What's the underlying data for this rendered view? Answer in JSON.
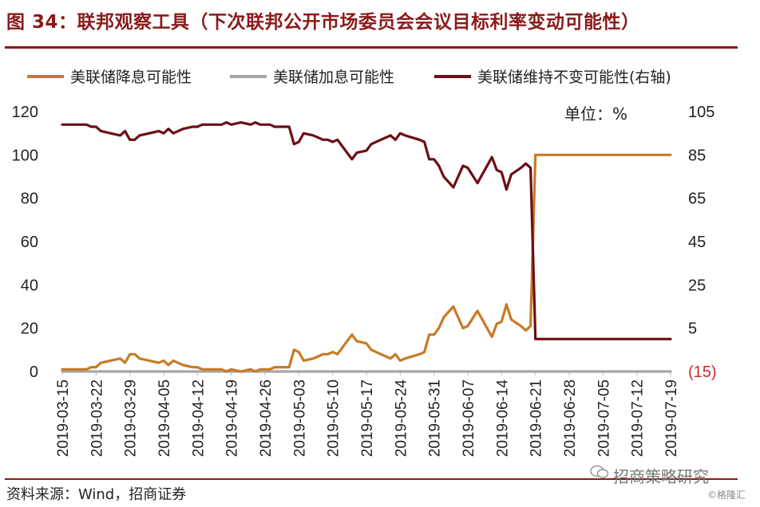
{
  "figure_title": "图 34：联邦观察工具（下次联邦公开市场委员会会议目标利率变动可能性）",
  "source_note": "资料来源：Wind，招商证券",
  "watermark": {
    "main": "招商策略研究",
    "small": "©格隆汇"
  },
  "colors": {
    "cut": "#c87a26",
    "hike": "#a6a6a6",
    "hold": "#6b0f14",
    "accent": "#8b1a1a",
    "negative_tick": "#d9242a"
  },
  "chart_data": {
    "type": "line",
    "annotation": "单位：%",
    "legend": {
      "placement": "top",
      "entries": [
        "美联储降息可能性",
        "美联储加息可能性",
        "美联储维持不变可能性(右轴)"
      ]
    },
    "ylim_left": [
      0,
      120
    ],
    "yticks_left": [
      0,
      20,
      40,
      60,
      80,
      100,
      120
    ],
    "ylim_right": [
      -15,
      105
    ],
    "yticks_right": [
      "(15)",
      "5",
      "25",
      "45",
      "65",
      "85",
      "105"
    ],
    "x_start": "2019-03-15",
    "x_end": "2019-07-19",
    "x_ticks": [
      "2019-03-15",
      "2019-03-22",
      "2019-03-29",
      "2019-04-05",
      "2019-04-12",
      "2019-04-19",
      "2019-04-26",
      "2019-05-03",
      "2019-05-10",
      "2019-05-17",
      "2019-05-24",
      "2019-05-31",
      "2019-06-07",
      "2019-06-14",
      "2019-06-21",
      "2019-06-28",
      "2019-07-05",
      "2019-07-12",
      "2019-07-19"
    ],
    "series": [
      {
        "name": "美联储降息可能性",
        "axis": "left",
        "points": [
          [
            "2019-03-15",
            1
          ],
          [
            "2019-03-18",
            1
          ],
          [
            "2019-03-20",
            1
          ],
          [
            "2019-03-21",
            2
          ],
          [
            "2019-03-22",
            2
          ],
          [
            "2019-03-23",
            4
          ],
          [
            "2019-03-25",
            5
          ],
          [
            "2019-03-27",
            6
          ],
          [
            "2019-03-28",
            4
          ],
          [
            "2019-03-29",
            8
          ],
          [
            "2019-03-30",
            8
          ],
          [
            "2019-03-31",
            6
          ],
          [
            "2019-04-02",
            5
          ],
          [
            "2019-04-04",
            4
          ],
          [
            "2019-04-05",
            5
          ],
          [
            "2019-04-06",
            3
          ],
          [
            "2019-04-07",
            5
          ],
          [
            "2019-04-09",
            3
          ],
          [
            "2019-04-11",
            2
          ],
          [
            "2019-04-12",
            2
          ],
          [
            "2019-04-13",
            1
          ],
          [
            "2019-04-16",
            1
          ],
          [
            "2019-04-17",
            1
          ],
          [
            "2019-04-18",
            0
          ],
          [
            "2019-04-19",
            1
          ],
          [
            "2019-04-21",
            0
          ],
          [
            "2019-04-23",
            1
          ],
          [
            "2019-04-24",
            0
          ],
          [
            "2019-04-25",
            1
          ],
          [
            "2019-04-26",
            1
          ],
          [
            "2019-04-27",
            1
          ],
          [
            "2019-04-28",
            2
          ],
          [
            "2019-04-29",
            2
          ],
          [
            "2019-05-01",
            2
          ],
          [
            "2019-05-02",
            10
          ],
          [
            "2019-05-03",
            9
          ],
          [
            "2019-05-04",
            5
          ],
          [
            "2019-05-06",
            6
          ],
          [
            "2019-05-07",
            7
          ],
          [
            "2019-05-08",
            8
          ],
          [
            "2019-05-09",
            8
          ],
          [
            "2019-05-10",
            9
          ],
          [
            "2019-05-11",
            8
          ],
          [
            "2019-05-14",
            17
          ],
          [
            "2019-05-15",
            14
          ],
          [
            "2019-05-17",
            13
          ],
          [
            "2019-05-18",
            10
          ],
          [
            "2019-05-20",
            8
          ],
          [
            "2019-05-21",
            7
          ],
          [
            "2019-05-22",
            6
          ],
          [
            "2019-05-23",
            8
          ],
          [
            "2019-05-24",
            5
          ],
          [
            "2019-05-25",
            6
          ],
          [
            "2019-05-28",
            8
          ],
          [
            "2019-05-29",
            9
          ],
          [
            "2019-05-30",
            17
          ],
          [
            "2019-05-31",
            17
          ],
          [
            "2019-06-01",
            20
          ],
          [
            "2019-06-02",
            25
          ],
          [
            "2019-06-04",
            30
          ],
          [
            "2019-06-05",
            25
          ],
          [
            "2019-06-06",
            20
          ],
          [
            "2019-06-07",
            21
          ],
          [
            "2019-06-09",
            28
          ],
          [
            "2019-06-10",
            24
          ],
          [
            "2019-06-12",
            16
          ],
          [
            "2019-06-13",
            22
          ],
          [
            "2019-06-14",
            23
          ],
          [
            "2019-06-15",
            31
          ],
          [
            "2019-06-16",
            24
          ],
          [
            "2019-06-18",
            21
          ],
          [
            "2019-06-19",
            19
          ],
          [
            "2019-06-20",
            21
          ],
          [
            "2019-06-21",
            100
          ],
          [
            "2019-06-25",
            100
          ],
          [
            "2019-07-19",
            100
          ]
        ]
      },
      {
        "name": "美联储加息可能性",
        "axis": "left",
        "points": [
          [
            "2019-03-15",
            0
          ],
          [
            "2019-07-19",
            0
          ]
        ]
      },
      {
        "name": "美联储维持不变可能性(右轴)",
        "axis": "right",
        "points": [
          [
            "2019-03-15",
            99
          ],
          [
            "2019-03-18",
            99
          ],
          [
            "2019-03-20",
            99
          ],
          [
            "2019-03-21",
            98
          ],
          [
            "2019-03-22",
            98
          ],
          [
            "2019-03-23",
            96
          ],
          [
            "2019-03-25",
            95
          ],
          [
            "2019-03-27",
            94
          ],
          [
            "2019-03-28",
            96
          ],
          [
            "2019-03-29",
            92
          ],
          [
            "2019-03-30",
            92
          ],
          [
            "2019-03-31",
            94
          ],
          [
            "2019-04-02",
            95
          ],
          [
            "2019-04-04",
            96
          ],
          [
            "2019-04-05",
            95
          ],
          [
            "2019-04-06",
            97
          ],
          [
            "2019-04-07",
            95
          ],
          [
            "2019-04-09",
            97
          ],
          [
            "2019-04-11",
            98
          ],
          [
            "2019-04-12",
            98
          ],
          [
            "2019-04-13",
            99
          ],
          [
            "2019-04-16",
            99
          ],
          [
            "2019-04-17",
            99
          ],
          [
            "2019-04-18",
            100
          ],
          [
            "2019-04-19",
            99
          ],
          [
            "2019-04-21",
            100
          ],
          [
            "2019-04-23",
            99
          ],
          [
            "2019-04-24",
            100
          ],
          [
            "2019-04-25",
            99
          ],
          [
            "2019-04-26",
            99
          ],
          [
            "2019-04-27",
            99
          ],
          [
            "2019-04-28",
            98
          ],
          [
            "2019-04-29",
            98
          ],
          [
            "2019-05-01",
            98
          ],
          [
            "2019-05-02",
            90
          ],
          [
            "2019-05-03",
            91
          ],
          [
            "2019-05-04",
            95
          ],
          [
            "2019-05-06",
            94
          ],
          [
            "2019-05-07",
            93
          ],
          [
            "2019-05-08",
            92
          ],
          [
            "2019-05-09",
            92
          ],
          [
            "2019-05-10",
            91
          ],
          [
            "2019-05-11",
            92
          ],
          [
            "2019-05-14",
            83
          ],
          [
            "2019-05-15",
            86
          ],
          [
            "2019-05-17",
            87
          ],
          [
            "2019-05-18",
            90
          ],
          [
            "2019-05-20",
            92
          ],
          [
            "2019-05-21",
            93
          ],
          [
            "2019-05-22",
            94
          ],
          [
            "2019-05-23",
            92
          ],
          [
            "2019-05-24",
            95
          ],
          [
            "2019-05-25",
            94
          ],
          [
            "2019-05-28",
            92
          ],
          [
            "2019-05-29",
            91
          ],
          [
            "2019-05-30",
            83
          ],
          [
            "2019-05-31",
            83
          ],
          [
            "2019-06-01",
            80
          ],
          [
            "2019-06-02",
            75
          ],
          [
            "2019-06-04",
            70
          ],
          [
            "2019-06-05",
            75
          ],
          [
            "2019-06-06",
            80
          ],
          [
            "2019-06-07",
            79
          ],
          [
            "2019-06-09",
            72
          ],
          [
            "2019-06-10",
            76
          ],
          [
            "2019-06-12",
            84
          ],
          [
            "2019-06-13",
            78
          ],
          [
            "2019-06-14",
            77
          ],
          [
            "2019-06-15",
            69
          ],
          [
            "2019-06-16",
            76
          ],
          [
            "2019-06-18",
            79
          ],
          [
            "2019-06-19",
            81
          ],
          [
            "2019-06-20",
            79
          ],
          [
            "2019-06-21",
            0
          ],
          [
            "2019-06-25",
            0
          ],
          [
            "2019-07-19",
            0
          ]
        ]
      }
    ]
  }
}
